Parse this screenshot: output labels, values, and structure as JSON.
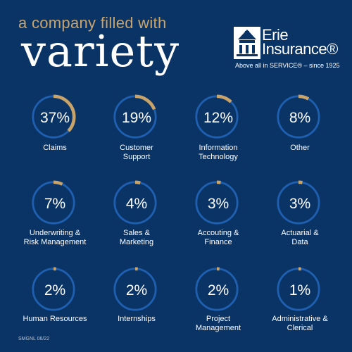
{
  "header": {
    "tagline": "a company filled with",
    "headline": "variety"
  },
  "logo": {
    "name_line1": "Erie",
    "name_line2": "Insurance®",
    "tagline": "Above all in SERVICE® – since 1925"
  },
  "colors": {
    "background": "#0b3466",
    "accent": "#c9a46a",
    "ring": "#1f5fb0",
    "text": "#ffffff"
  },
  "stats": [
    {
      "percent": "37%",
      "value": 37,
      "label": "Claims"
    },
    {
      "percent": "19%",
      "value": 19,
      "label": "Customer\nSupport"
    },
    {
      "percent": "12%",
      "value": 12,
      "label": "Information\nTechnology"
    },
    {
      "percent": "8%",
      "value": 8,
      "label": "Other"
    },
    {
      "percent": "7%",
      "value": 7,
      "label": "Underwriting &\nRisk Management"
    },
    {
      "percent": "4%",
      "value": 4,
      "label": "Sales &\nMarketing"
    },
    {
      "percent": "3%",
      "value": 3,
      "label": "Accouting &\nFinance"
    },
    {
      "percent": "3%",
      "value": 3,
      "label": "Actuarial &\nData"
    },
    {
      "percent": "2%",
      "value": 2,
      "label": "Human Resources"
    },
    {
      "percent": "2%",
      "value": 2,
      "label": "Internships"
    },
    {
      "percent": "2%",
      "value": 2,
      "label": "Project\nManagement"
    },
    {
      "percent": "1%",
      "value": 1,
      "label": "Administrative &\nClerical"
    }
  ],
  "footer": {
    "code": "SMGNL 06/22"
  }
}
